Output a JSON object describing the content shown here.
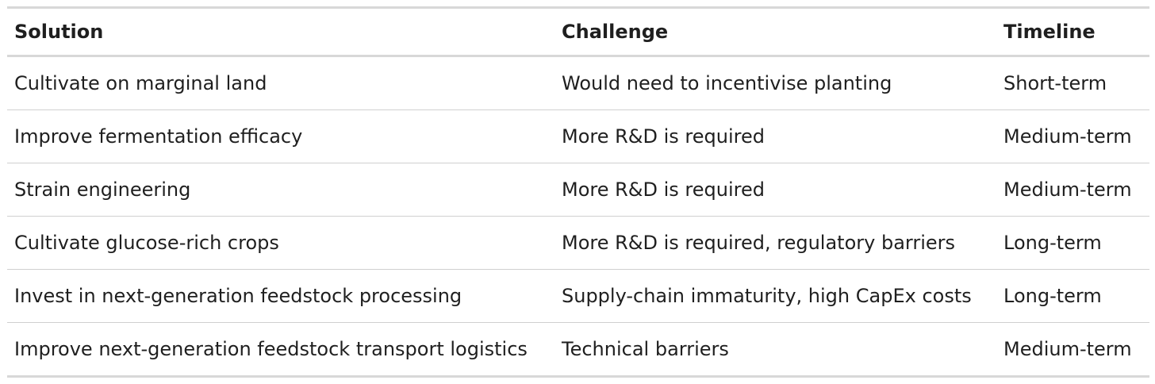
{
  "table": {
    "headers": [
      "Solution",
      "Challenge",
      "Timeline"
    ],
    "rows": [
      [
        "Cultivate on marginal land",
        "Would need to incentivise planting",
        "Short-term"
      ],
      [
        "Improve fermentation efficacy",
        "More R&D is required",
        "Medium-term"
      ],
      [
        "Strain engineering",
        "More R&D is required",
        "Medium-term"
      ],
      [
        "Cultivate glucose-rich crops",
        "More R&D is required, regulatory barriers",
        "Long-term"
      ],
      [
        "Invest in next-generation feedstock processing",
        "Supply-chain immaturity, high CapEx costs",
        "Long-term"
      ],
      [
        "Improve next-generation feedstock transport logistics",
        "Technical barriers",
        "Medium-term"
      ]
    ]
  }
}
